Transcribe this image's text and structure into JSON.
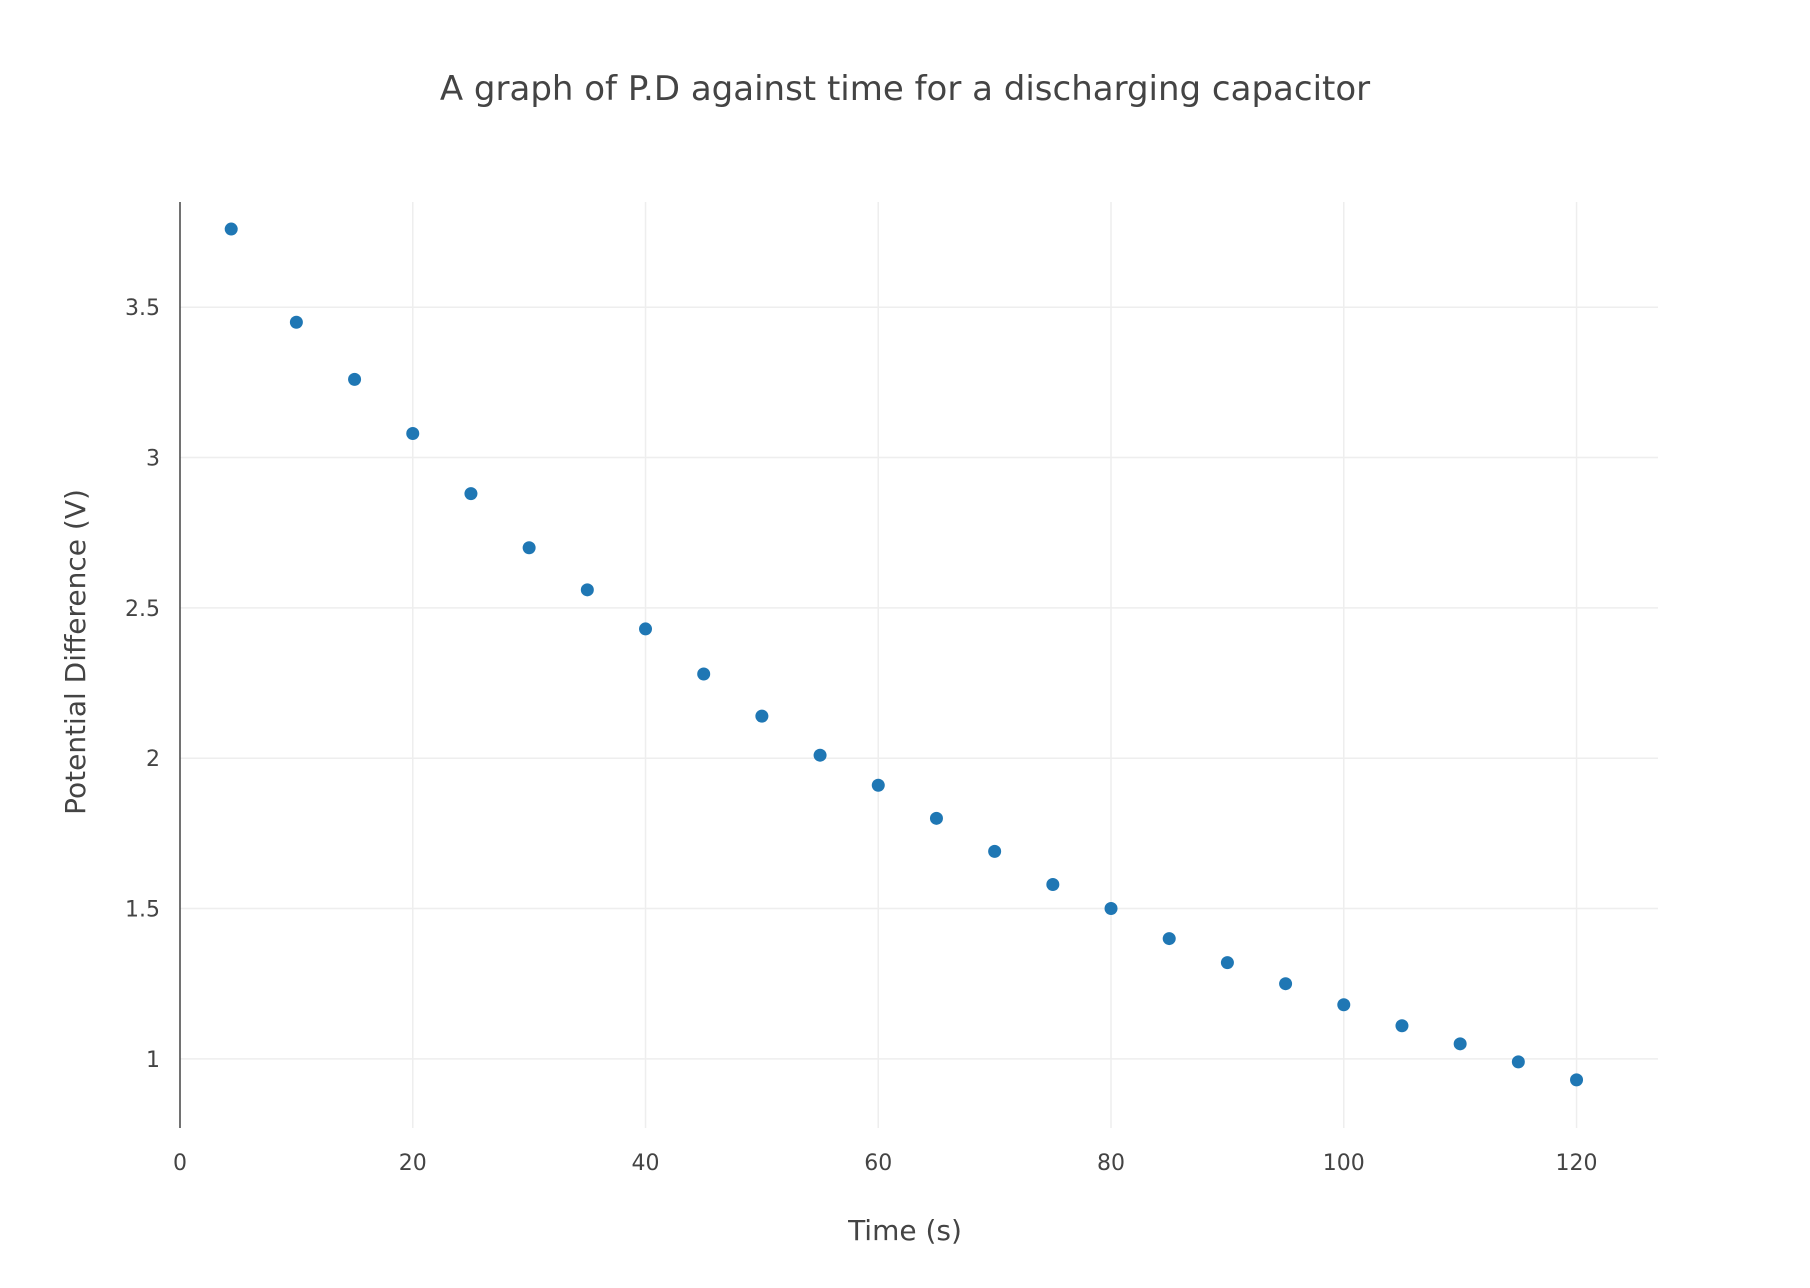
{
  "chart_data": {
    "type": "scatter",
    "title": "A graph of P.D against time for a discharging capacitor",
    "xlabel": "Time (s)",
    "ylabel": "Potential Difference (V)",
    "xlim": [
      0,
      127
    ],
    "ylim": [
      0.77,
      3.85
    ],
    "xticks": [
      0,
      20,
      40,
      60,
      80,
      100,
      120
    ],
    "yticks": [
      1,
      1.5,
      2,
      2.5,
      3,
      3.5
    ],
    "grid": true,
    "legend": "none",
    "colors": {
      "marker": "#1f77b4",
      "grid": "#eeeeee",
      "axis": "#444444",
      "text": "#444444",
      "title": "#444444"
    },
    "series": [
      {
        "x": [
          4.4,
          10,
          15,
          20,
          25,
          30,
          35,
          40,
          45,
          50,
          55,
          60,
          65,
          70,
          75,
          80,
          85,
          90,
          95,
          100,
          105,
          110,
          115,
          120
        ],
        "y": [
          3.76,
          3.45,
          3.26,
          3.08,
          2.88,
          2.7,
          2.56,
          2.43,
          2.28,
          2.14,
          2.01,
          1.91,
          1.8,
          1.69,
          1.58,
          1.5,
          1.4,
          1.32,
          1.25,
          1.18,
          1.11,
          1.05,
          0.99,
          0.93
        ]
      }
    ]
  }
}
